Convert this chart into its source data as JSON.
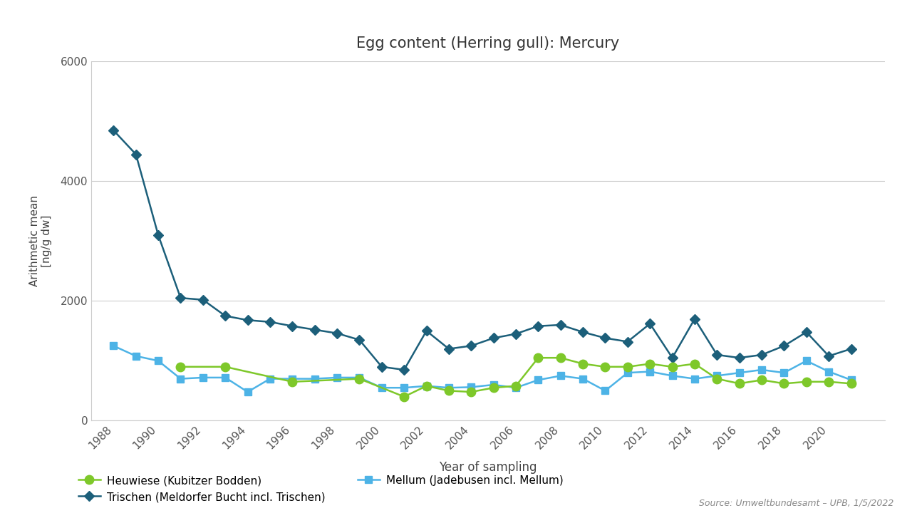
{
  "title": "Egg content (Herring gull): Mercury",
  "xlabel": "Year of sampling",
  "ylabel_line1": "Arithmetic mean",
  "ylabel_line2": "[ng/g dw]",
  "source": "Source: Umweltbundesamt – UPB, 1/5/2022",
  "ylim": [
    0,
    6000
  ],
  "yticks": [
    0,
    2000,
    4000,
    6000
  ],
  "background_color": "#ffffff",
  "plot_bg_color": "#ffffff",
  "trischen": {
    "label": "Trischen (Meldorfer Bucht incl. Trischen)",
    "color": "#1c5f7a",
    "marker": "D",
    "markersize": 7,
    "years": [
      1988,
      1989,
      1990,
      1991,
      1992,
      1993,
      1994,
      1995,
      1996,
      1997,
      1998,
      1999,
      2000,
      2001,
      2002,
      2003,
      2004,
      2005,
      2006,
      2007,
      2008,
      2009,
      2010,
      2011,
      2012,
      2013,
      2014,
      2015,
      2016,
      2017,
      2018,
      2019,
      2020,
      2021
    ],
    "values": [
      4850,
      4450,
      3100,
      2050,
      2020,
      1750,
      1680,
      1650,
      1580,
      1520,
      1460,
      1350,
      900,
      850,
      1500,
      1200,
      1250,
      1380,
      1450,
      1580,
      1600,
      1480,
      1380,
      1320,
      1620,
      1050,
      1700,
      1100,
      1050,
      1100,
      1250,
      1480,
      1080,
      1200
    ]
  },
  "mellum": {
    "label": "Mellum (Jadebusen incl. Mellum)",
    "color": "#4db3e6",
    "marker": "s",
    "markersize": 7,
    "years": [
      1988,
      1989,
      1990,
      1991,
      1992,
      1993,
      1994,
      1995,
      1996,
      1997,
      1998,
      1999,
      2000,
      2001,
      2002,
      2003,
      2004,
      2005,
      2006,
      2007,
      2008,
      2009,
      2010,
      2011,
      2012,
      2013,
      2014,
      2015,
      2016,
      2017,
      2018,
      2019,
      2020,
      2021
    ],
    "values": [
      1250,
      1080,
      1000,
      700,
      720,
      720,
      480,
      700,
      700,
      700,
      720,
      720,
      550,
      550,
      580,
      550,
      560,
      600,
      550,
      680,
      750,
      700,
      500,
      800,
      820,
      750,
      700,
      750,
      800,
      850,
      800,
      1000,
      820,
      680
    ]
  },
  "heuwiese": {
    "label": "Heuwiese (Kubitzer Bodden)",
    "color": "#7ec82a",
    "marker": "o",
    "markersize": 9,
    "years": [
      1991,
      1993,
      1996,
      1999,
      2001,
      2002,
      2003,
      2004,
      2005,
      2006,
      2007,
      2008,
      2009,
      2010,
      2011,
      2012,
      2013,
      2014,
      2015,
      2016,
      2017,
      2018,
      2019,
      2020,
      2021
    ],
    "values": [
      900,
      900,
      650,
      700,
      400,
      580,
      500,
      480,
      550,
      580,
      1050,
      1050,
      950,
      900,
      900,
      950,
      900,
      950,
      700,
      620,
      680,
      620,
      650,
      650,
      620
    ]
  }
}
